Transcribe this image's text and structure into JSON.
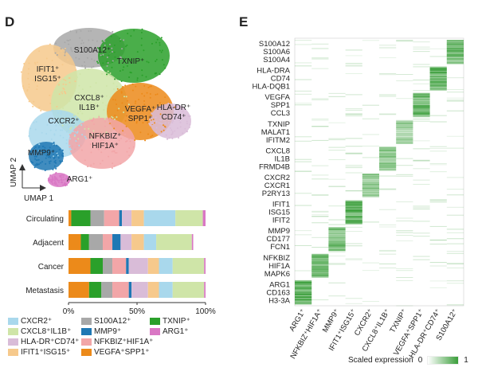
{
  "panel_d_label": "D",
  "panel_e_label": "E",
  "chart_data": [
    {
      "type": "scatter",
      "subtype": "umap",
      "xlabel": "UMAP 1",
      "ylabel": "UMAP 2",
      "clusters": [
        {
          "name": "S100A12⁺",
          "color": "#a8a8a8"
        },
        {
          "name": "TXNIP⁺",
          "color": "#2aa02a"
        },
        {
          "name": "IFIT1⁺ ISG15⁺",
          "color": "#f6c98c"
        },
        {
          "name": "CXCL8⁺ IL1B⁺",
          "color": "#cfe5a8"
        },
        {
          "name": "VEGFA⁺ SPP1⁺",
          "color": "#ec8a1a"
        },
        {
          "name": "HLA-DR⁺ CD74⁺",
          "color": "#d9bcd8"
        },
        {
          "name": "CXCR2⁺",
          "color": "#a9d8ec"
        },
        {
          "name": "NFKBIZ⁺ HIF1A⁺",
          "color": "#f2a6a8"
        },
        {
          "name": "MMP9⁺",
          "color": "#1f78b4"
        },
        {
          "name": "ARG1⁺",
          "color": "#d977c4"
        }
      ]
    },
    {
      "type": "bar",
      "orientation": "horizontal",
      "stacked": true,
      "categories": [
        "Circulating",
        "Adjacent",
        "Cancer",
        "Metastasis"
      ],
      "xticks": [
        "0%",
        "50%",
        "100%"
      ],
      "xlim": [
        0,
        100
      ],
      "series": [
        {
          "name": "VEGFA⁺SPP1⁺",
          "color": "#ec8a1a",
          "values": [
            2,
            9,
            16,
            15
          ]
        },
        {
          "name": "TXNIP⁺",
          "color": "#2aa02a",
          "values": [
            14,
            6,
            9,
            9
          ]
        },
        {
          "name": "S100A12⁺",
          "color": "#a8a8a8",
          "values": [
            10,
            10,
            7,
            8
          ]
        },
        {
          "name": "NFKBIZ⁺HIF1A⁺",
          "color": "#f2a6a8",
          "values": [
            11,
            7,
            10,
            12
          ]
        },
        {
          "name": "MMP9⁺",
          "color": "#1f78b4",
          "values": [
            2,
            6,
            2,
            2
          ]
        },
        {
          "name": "HLA-DR⁺CD74⁺",
          "color": "#d9bcd8",
          "values": [
            7,
            8,
            14,
            12
          ]
        },
        {
          "name": "IFIT1⁺ISG15⁺",
          "color": "#f6c98c",
          "values": [
            9,
            9,
            8,
            8
          ]
        },
        {
          "name": "CXCR2⁺",
          "color": "#a9d8ec",
          "values": [
            23,
            9,
            10,
            10
          ]
        },
        {
          "name": "CXCL8⁺IL1B⁺",
          "color": "#cfe5a8",
          "values": [
            20,
            26,
            23,
            23
          ]
        },
        {
          "name": "ARG1⁺",
          "color": "#d977c4",
          "values": [
            2,
            1,
            1,
            1
          ]
        }
      ]
    },
    {
      "type": "heatmap",
      "colorbar_label": "Scaled expression",
      "colorbar_min": "0",
      "colorbar_max": "1",
      "low_color": "#ffffff",
      "high_color": "#3a9e3a",
      "columns": [
        "ARG1⁺",
        "NFKBIZ⁺HIF1A⁺",
        "MMP9⁺",
        "IFIT1⁺ISG15⁺",
        "CXCR2⁺",
        "CXCL8⁺IL1B⁺",
        "TXNIP⁺",
        "VEGFA⁺SPP1⁺",
        "HLA-DR⁺CD74⁺",
        "S100A12⁺"
      ],
      "gene_groups": [
        {
          "genes": [
            "S100A12",
            "S100A6",
            "S100A4"
          ],
          "column": 9,
          "intensity": 0.9
        },
        {
          "genes": [
            "HLA-DRA",
            "CD74",
            "HLA-DQB1"
          ],
          "column": 8,
          "intensity": 1.0
        },
        {
          "genes": [
            "VEGFA",
            "SPP1",
            "CCL3"
          ],
          "column": 7,
          "intensity": 0.9
        },
        {
          "genes": [
            "TXNIP",
            "MALAT1",
            "IFITM2"
          ],
          "column": 6,
          "intensity": 0.5
        },
        {
          "genes": [
            "CXCL8",
            "IL1B",
            "FRMD4B"
          ],
          "column": 5,
          "intensity": 0.7
        },
        {
          "genes": [
            "CXCR2",
            "CXCR1",
            "P2RY13"
          ],
          "column": 4,
          "intensity": 0.6
        },
        {
          "genes": [
            "IFIT1",
            "ISG15",
            "IFIT2"
          ],
          "column": 3,
          "intensity": 1.0
        },
        {
          "genes": [
            "MMP9",
            "CD177",
            "FCN1"
          ],
          "column": 2,
          "intensity": 0.8
        },
        {
          "genes": [
            "NFKBIZ",
            "HIF1A",
            "MAPK6"
          ],
          "column": 1,
          "intensity": 0.8
        },
        {
          "genes": [
            "ARG1",
            "CD163",
            "H3-3A"
          ],
          "column": 0,
          "intensity": 1.0
        }
      ]
    }
  ],
  "legend": [
    {
      "label": "CXCR2⁺",
      "color": "#a9d8ec"
    },
    {
      "label": "S100A12⁺",
      "color": "#a8a8a8"
    },
    {
      "label": "TXNIP⁺",
      "color": "#2aa02a"
    },
    {
      "label": "CXCL8⁺IL1B⁺",
      "color": "#cfe5a8"
    },
    {
      "label": "MMP9⁺",
      "color": "#1f78b4"
    },
    {
      "label": "ARG1⁺",
      "color": "#d977c4"
    },
    {
      "label": "HLA-DR⁺CD74⁺",
      "color": "#d9bcd8"
    },
    {
      "label": "NFKBIZ⁺HIF1A⁺",
      "color": "#f2a6a8"
    },
    {
      "label": "",
      "color": ""
    },
    {
      "label": "IFIT1⁺ISG15⁺",
      "color": "#f6c98c"
    },
    {
      "label": "VEGFA⁺SPP1⁺",
      "color": "#ec8a1a"
    },
    {
      "label": "",
      "color": ""
    }
  ]
}
